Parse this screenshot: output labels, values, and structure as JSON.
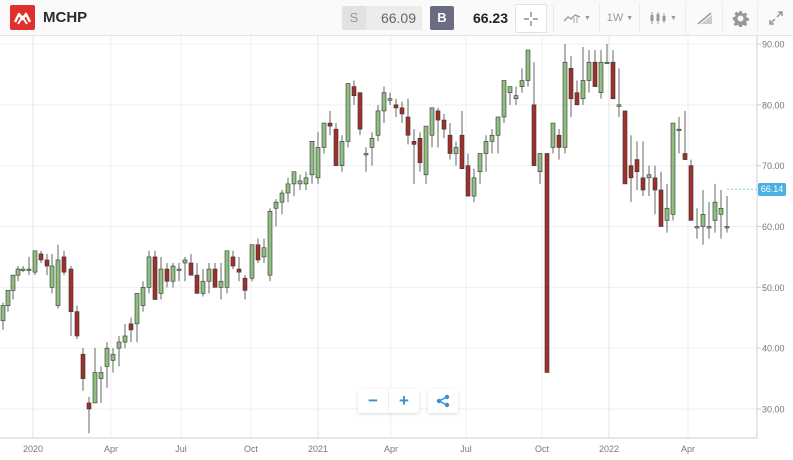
{
  "header": {
    "logo": "microchip-logo-icon",
    "ticker": "MCHP",
    "sell_label": "S",
    "sell_price": "66.09",
    "buy_label": "B",
    "buy_price": "66.23",
    "tools": {
      "crosshair": "crosshair-icon",
      "chart_type_line": "line-chart-icon",
      "interval": "1W",
      "candle_type": "candlestick-icon",
      "drawing": "drawing-tools-icon",
      "settings": "gear-icon",
      "fullscreen": "expand-icon"
    }
  },
  "current_price_tag": "66.14",
  "controls": {
    "zoom_out": "−",
    "zoom_in": "+",
    "share": "share-icon"
  },
  "colors": {
    "up": "#8fbf7f",
    "down": "#a0312a",
    "accent": "#4ab0e0",
    "logo": "#e0302d",
    "grid": "#efefef"
  },
  "chart_data": {
    "type": "candlestick",
    "title": "MCHP",
    "interval": "1W",
    "xlabel": "",
    "ylabel": "",
    "ylim": [
      25,
      91
    ],
    "grid": true,
    "y_ticks": [
      "90.00",
      "80.00",
      "70.00",
      "60.00",
      "50.00",
      "40.00",
      "30.00"
    ],
    "x_ticks": [
      {
        "label": "2020",
        "x": 33
      },
      {
        "label": "Apr",
        "x": 111
      },
      {
        "label": "Jul",
        "x": 181
      },
      {
        "label": "Oct",
        "x": 251
      },
      {
        "label": "2021",
        "x": 318
      },
      {
        "label": "Apr",
        "x": 391
      },
      {
        "label": "Jul",
        "x": 466
      },
      {
        "label": "Oct",
        "x": 542
      },
      {
        "label": "2022",
        "x": 609
      },
      {
        "label": "Apr",
        "x": 688
      }
    ],
    "candles": [
      [
        3,
        44.5,
        47.5,
        43,
        47
      ],
      [
        8,
        47,
        49.5,
        46,
        49.5
      ],
      [
        13,
        49.5,
        52,
        48,
        52
      ],
      [
        18,
        52,
        53.5,
        51,
        53
      ],
      [
        23,
        53,
        53.5,
        52.5,
        53
      ],
      [
        29,
        53,
        55,
        52,
        53
      ],
      [
        35,
        52.5,
        56,
        52,
        56
      ],
      [
        41,
        55.5,
        56,
        54,
        54.5
      ],
      [
        47,
        54.5,
        55.5,
        52,
        53.5
      ],
      [
        52,
        50,
        55.5,
        49,
        53.5
      ],
      [
        58,
        47,
        57,
        46.5,
        54.5
      ],
      [
        64,
        55,
        56,
        52,
        52.5
      ],
      [
        71,
        53,
        53.5,
        42,
        46
      ],
      [
        77,
        46,
        47,
        41.5,
        42
      ],
      [
        83,
        39,
        40,
        33,
        35
      ],
      [
        89,
        31,
        32,
        26,
        30
      ],
      [
        95,
        31,
        40,
        31,
        36
      ],
      [
        101,
        35,
        37,
        31,
        36
      ],
      [
        107,
        37,
        41,
        33.5,
        40
      ],
      [
        113,
        38,
        40,
        36,
        39
      ],
      [
        119,
        40,
        42,
        37,
        41
      ],
      [
        125,
        41,
        44,
        40,
        42
      ],
      [
        131,
        44,
        45,
        41,
        43
      ],
      [
        137,
        44,
        48,
        41,
        49
      ],
      [
        143,
        47,
        51,
        46,
        50
      ],
      [
        149,
        50,
        56,
        49,
        55
      ],
      [
        155,
        55,
        56,
        48,
        48
      ],
      [
        161,
        49,
        55,
        48,
        53
      ],
      [
        167,
        53,
        54,
        50,
        51
      ],
      [
        173,
        51,
        54,
        50,
        53.5
      ],
      [
        179,
        53,
        54,
        51,
        53
      ],
      [
        185,
        54,
        55,
        51,
        54.5
      ],
      [
        191,
        54,
        55.5,
        52,
        52
      ],
      [
        197,
        52,
        54,
        51,
        49
      ],
      [
        203,
        49,
        53,
        48.5,
        51
      ],
      [
        209,
        51,
        54,
        49,
        53
      ],
      [
        215,
        53,
        54,
        50,
        50
      ],
      [
        221,
        50,
        54,
        48,
        51
      ],
      [
        227,
        50,
        56,
        49,
        56
      ],
      [
        233,
        55,
        56,
        53,
        53.5
      ],
      [
        239,
        53,
        55,
        51,
        52.5
      ],
      [
        245,
        51.5,
        52,
        48,
        49.5
      ],
      [
        252,
        51.5,
        57,
        51,
        57
      ],
      [
        258,
        57,
        58,
        54,
        54.5
      ],
      [
        264,
        55,
        58,
        54,
        56.5
      ],
      [
        270,
        52,
        63,
        51,
        62.5
      ],
      [
        276,
        63,
        64.5,
        60,
        64
      ],
      [
        282,
        64,
        66,
        62,
        65.5
      ],
      [
        288,
        65.5,
        68,
        64,
        67
      ],
      [
        294,
        67,
        68,
        65,
        69
      ],
      [
        300,
        67,
        68.5,
        66,
        67.5
      ],
      [
        306,
        67,
        69,
        66,
        68
      ],
      [
        312,
        68.5,
        74,
        67,
        74
      ],
      [
        318,
        68,
        75.5,
        67,
        73
      ],
      [
        324,
        73,
        77,
        72,
        77
      ],
      [
        330,
        77,
        79,
        75,
        76.5
      ],
      [
        336,
        76,
        77,
        71,
        70
      ],
      [
        342,
        70,
        75,
        69,
        74
      ],
      [
        348,
        74,
        82,
        73,
        83.5
      ],
      [
        354,
        83,
        84,
        80,
        81.5
      ],
      [
        360,
        82,
        81,
        75,
        76
      ],
      [
        366,
        72,
        73,
        69,
        72
      ],
      [
        372,
        73,
        75.5,
        70,
        74.5
      ],
      [
        378,
        75,
        80,
        74,
        79
      ],
      [
        384,
        79,
        83,
        77,
        82
      ],
      [
        390,
        81,
        82,
        80,
        81
      ],
      [
        396,
        80,
        81,
        78,
        79.5
      ],
      [
        402,
        79.5,
        80.5,
        77,
        78.5
      ],
      [
        408,
        78,
        81,
        73.5,
        75
      ],
      [
        414,
        74,
        76,
        67,
        73.5
      ],
      [
        420,
        74.5,
        75.5,
        69,
        70.5
      ],
      [
        426,
        68.5,
        76,
        67,
        76.5
      ],
      [
        432,
        75,
        79.5,
        73,
        79.5
      ],
      [
        438,
        79,
        79.5,
        73,
        77.5
      ],
      [
        444,
        77.5,
        78.5,
        74.5,
        76
      ],
      [
        450,
        75,
        77,
        71,
        72
      ],
      [
        456,
        72,
        74,
        70,
        73
      ],
      [
        462,
        75,
        79,
        73,
        69.5
      ],
      [
        468,
        70,
        72,
        65,
        65
      ],
      [
        474,
        65,
        69.5,
        64,
        68
      ],
      [
        480,
        69,
        70,
        67,
        72
      ],
      [
        486,
        72,
        75,
        69,
        74
      ],
      [
        492,
        74,
        76,
        72,
        75
      ],
      [
        498,
        75,
        77,
        72,
        78
      ],
      [
        504,
        78,
        84,
        77,
        84
      ],
      [
        510,
        82,
        83,
        80,
        83
      ],
      [
        516,
        81,
        83,
        80,
        81.5
      ],
      [
        522,
        83,
        86,
        82,
        84
      ],
      [
        528,
        84,
        89,
        83,
        89
      ],
      [
        534,
        80,
        87,
        79,
        70
      ],
      [
        540,
        69,
        69,
        67,
        72
      ],
      [
        547,
        72,
        72,
        36,
        36
      ],
      [
        553,
        73,
        76,
        72,
        77
      ],
      [
        559,
        75,
        76,
        71,
        73
      ],
      [
        565,
        73,
        90,
        72,
        87
      ],
      [
        571,
        86,
        88,
        78,
        81
      ],
      [
        577,
        82,
        84,
        81,
        80
      ],
      [
        583,
        81,
        89.5,
        80,
        84
      ],
      [
        589,
        84,
        89,
        82,
        87
      ],
      [
        595,
        87,
        89,
        83,
        83
      ],
      [
        601,
        82,
        89,
        81,
        87
      ],
      [
        607,
        87,
        90,
        87,
        87
      ],
      [
        613,
        87,
        89,
        81,
        81
      ],
      [
        619,
        80,
        86,
        78,
        80
      ],
      [
        625,
        79,
        78,
        67,
        67
      ],
      [
        631,
        70,
        75,
        64,
        68
      ],
      [
        637,
        71,
        74,
        66,
        69
      ],
      [
        643,
        68,
        74,
        65,
        66
      ],
      [
        649,
        68,
        70,
        65,
        68.5
      ],
      [
        655,
        68,
        70,
        62,
        66
      ],
      [
        661,
        66,
        69,
        62,
        60
      ],
      [
        667,
        61,
        67,
        59,
        63
      ],
      [
        673,
        62,
        77,
        61,
        77
      ],
      [
        679,
        76,
        78,
        72,
        76
      ],
      [
        685,
        72,
        79,
        71,
        71
      ],
      [
        691,
        70,
        71,
        61,
        61
      ],
      [
        697,
        60,
        63,
        58,
        60
      ],
      [
        703,
        60,
        66,
        57,
        62
      ],
      [
        709,
        60,
        64,
        58,
        60
      ],
      [
        715,
        61,
        67,
        59,
        64
      ],
      [
        721,
        62,
        66,
        58,
        63
      ],
      [
        727,
        60,
        65,
        59,
        60
      ]
    ]
  }
}
